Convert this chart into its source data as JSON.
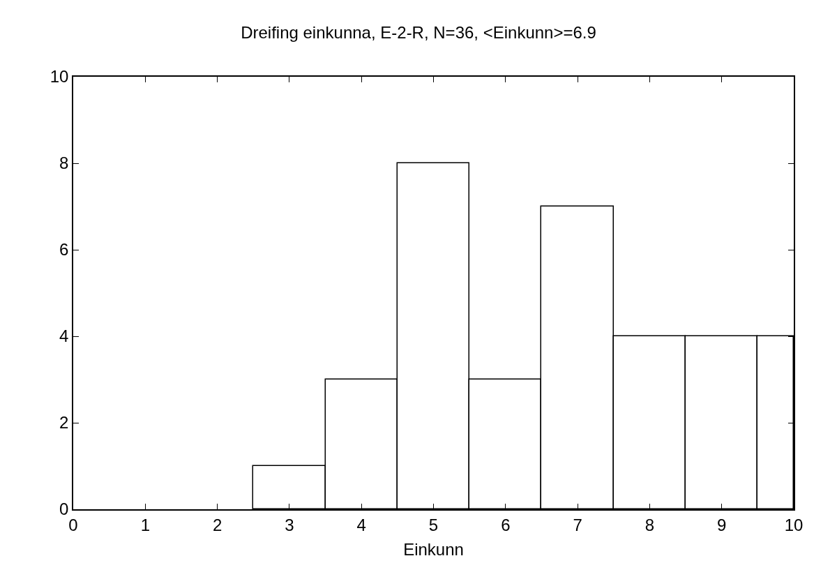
{
  "chart_data": {
    "type": "histogram",
    "title": "Dreifing einkunna, E-2-R, N=36, <Einkunn>=6.9",
    "xlabel": "Einkunn",
    "bins": [
      2.5,
      3.5,
      4.5,
      5.5,
      6.5,
      7.5,
      8.5,
      9.5,
      10
    ],
    "values": [
      1,
      3,
      8,
      3,
      7,
      4,
      4,
      4
    ],
    "color": "#ffffff",
    "xlim": [
      0,
      10
    ],
    "xticks": [
      0,
      1,
      2,
      3,
      4,
      5,
      6,
      7,
      8,
      9,
      10
    ],
    "ylim": [
      0,
      10
    ],
    "yticks": [
      0,
      2,
      4,
      6,
      8,
      10
    ]
  }
}
